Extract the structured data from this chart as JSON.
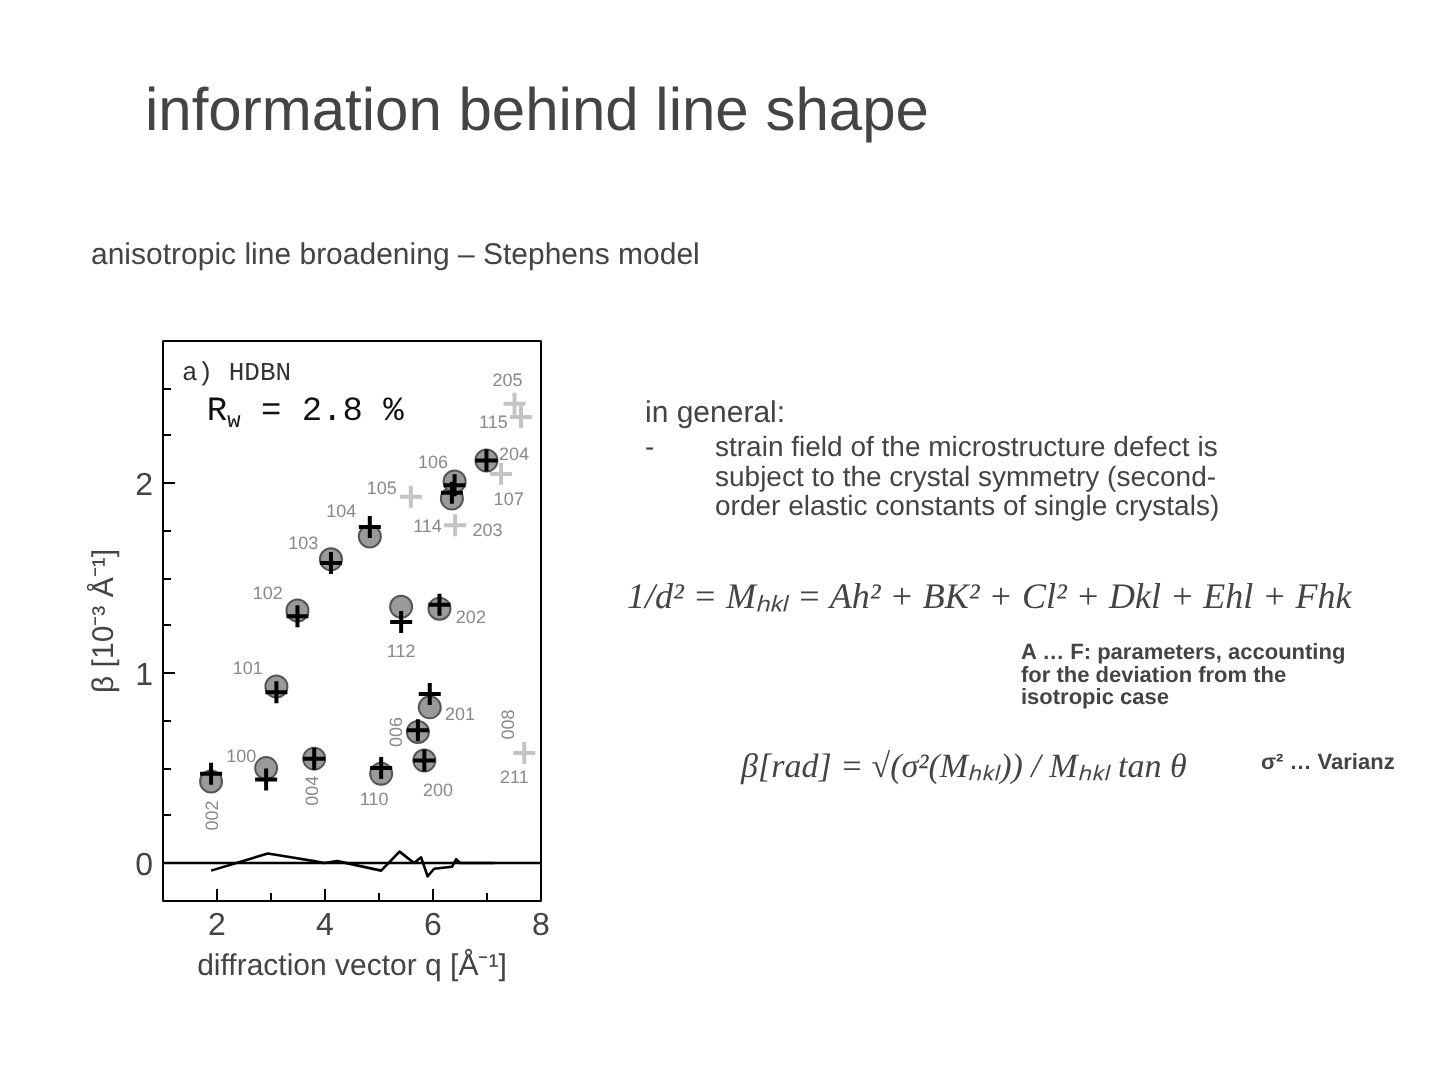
{
  "chart_data": {
    "type": "scatter",
    "title": "information behind line shape",
    "subtitle": "anisotropic line broadening – Stephens model",
    "xlabel": "diffraction vector q [Å⁻¹]",
    "ylabel": "β [10⁻³ Å⁻¹]",
    "xlim": [
      1,
      8
    ],
    "ylim": [
      -0.2,
      2.75
    ],
    "xticks": [
      2,
      {
        "value": 3,
        "label": null
      },
      4,
      {
        "value": 5,
        "label": null
      },
      6,
      {
        "value": 7,
        "label": null
      },
      8
    ],
    "yticks": [
      0,
      {
        "value": 0.25,
        "label": null
      },
      {
        "value": 0.5,
        "label": null
      },
      {
        "value": 0.75,
        "label": null
      },
      1,
      {
        "value": 1.25,
        "label": null
      },
      {
        "value": 1.5,
        "label": null
      },
      {
        "value": 1.75,
        "label": null
      },
      2,
      {
        "value": 2.25,
        "label": null
      },
      {
        "value": 2.5,
        "label": null
      }
    ],
    "grid": false,
    "series": [
      {
        "marker": "circle",
        "color": "#9a9a9a",
        "x": [
          1.89,
          2.91,
          3.1,
          3.49,
          3.8,
          4.11,
          4.83,
          5.04,
          5.41,
          5.72,
          5.84,
          5.94,
          6.12,
          6.35,
          6.4,
          6.99
        ],
        "values": [
          0.43,
          0.5,
          0.93,
          1.33,
          0.55,
          1.6,
          1.72,
          0.47,
          1.35,
          0.69,
          0.54,
          0.82,
          1.34,
          1.92,
          2.01,
          2.12
        ]
      },
      {
        "marker": "cross",
        "color": "#000000",
        "x": [
          1.89,
          2.91,
          3.1,
          3.49,
          3.8,
          4.11,
          4.83,
          5.04,
          5.41,
          5.72,
          5.84,
          5.94,
          6.12,
          6.35,
          6.4,
          6.99
        ],
        "values": [
          0.47,
          0.44,
          0.9,
          1.3,
          0.55,
          1.58,
          1.77,
          0.5,
          1.27,
          0.7,
          0.54,
          0.89,
          1.36,
          1.95,
          1.99,
          2.12
        ]
      },
      {
        "marker": "cross",
        "color": "#c4c4c4",
        "x": [
          5.59,
          6.41,
          7.26,
          7.51,
          7.63,
          7.69
        ],
        "values": [
          1.93,
          1.78,
          2.05,
          2.42,
          2.35,
          0.58
        ]
      },
      {
        "type": "line",
        "marker": "none",
        "color": "#000000",
        "x": [
          1.89,
          2.94,
          3.37,
          3.8,
          3.99,
          4.23,
          5.04,
          5.38,
          5.65,
          5.78,
          5.9,
          6.02,
          6.35,
          6.43,
          6.5,
          7.14
        ],
        "values": [
          -0.04,
          0.05,
          0.03,
          0.01,
          0.0,
          0.01,
          -0.04,
          0.06,
          0.0,
          0.03,
          -0.07,
          -0.03,
          -0.02,
          0.02,
          0.0,
          0.0
        ]
      }
    ],
    "ref_lines": [
      {
        "axis": "y",
        "value": 0,
        "color": "#000000"
      }
    ],
    "annotations": [
      "a) HDBN",
      "R$_{w}$ = 2.8 %",
      "in general:",
      "- strain field of the microstructure defect is\nsubject to the crystal symmetry (second-\norder elastic constants of single crystals)",
      "1/d² = Mₕₖₗ = Ah² + BK² + Cl² + Dkl + Ehl + Fhk",
      "A … F: parameters, accounting\nfor the deviation from the\nisotropic case",
      "β[rad] = √(σ²(Mₕₖₗ)) / Mₕₖₗ tan θ",
      "σ² … Varianz",
      {
        "text": "002",
        "x": 1.89,
        "y": 0.43
      },
      {
        "text": "100",
        "x": 2.91,
        "y": 0.5
      },
      {
        "text": "101",
        "x": 3.1,
        "y": 0.93
      },
      {
        "text": "102",
        "x": 3.49,
        "y": 1.33
      },
      {
        "text": "103",
        "x": 4.11,
        "y": 1.6
      },
      {
        "text": "004",
        "x": 3.8,
        "y": 0.55
      },
      {
        "text": "104",
        "x": 4.83,
        "y": 1.72
      },
      {
        "text": "110",
        "x": 5.04,
        "y": 0.47
      },
      {
        "text": "112",
        "x": 5.41,
        "y": 1.35
      },
      {
        "text": "105",
        "x": 5.59,
        "y": 1.93
      },
      {
        "text": "006",
        "x": 5.72,
        "y": 0.69
      },
      {
        "text": "200",
        "x": 5.84,
        "y": 0.54
      },
      {
        "text": "201",
        "x": 5.94,
        "y": 0.82
      },
      {
        "text": "202",
        "x": 6.12,
        "y": 1.34
      },
      {
        "text": "114",
        "x": 6.35,
        "y": 1.92
      },
      {
        "text": "203",
        "x": 6.41,
        "y": 1.78
      },
      {
        "text": "106",
        "x": 6.4,
        "y": 2.01
      },
      {
        "text": "107",
        "x": 7.26,
        "y": 2.05
      },
      {
        "text": "204",
        "x": 6.99,
        "y": 2.12
      },
      {
        "text": "115",
        "x": 7.63,
        "y": 2.35
      },
      {
        "text": "205",
        "x": 7.51,
        "y": 2.42
      },
      {
        "text": "008",
        "x": 7.69,
        "y": 0.58
      },
      {
        "text": "211",
        "x": 7.69,
        "y": 0.58
      }
    ]
  }
}
